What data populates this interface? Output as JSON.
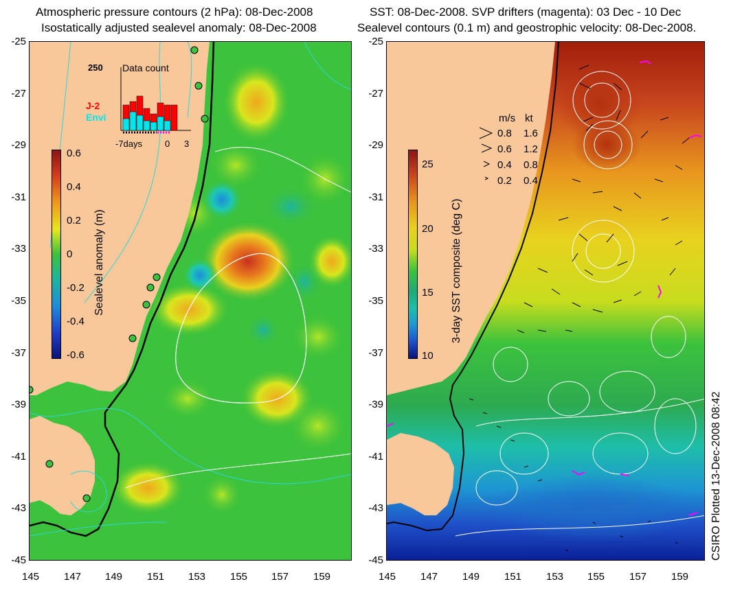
{
  "left_panel": {
    "title_line1": "Atmospheric pressure contours (2 hPa): 08-Dec-2008",
    "title_line2": "Isostatically adjusted sealevel anomaly: 08-Dec-2008",
    "colorbar_label": "Sealevel anomaly (m)",
    "colorbar_ticks": [
      "0.6",
      "0.4",
      "0.2",
      "0",
      "-0.2",
      "-0.4",
      "-0.6"
    ],
    "inset": {
      "title": "Data count",
      "ymax_label": "250",
      "series_a": "J-2",
      "series_b": "Envi",
      "x_labels": [
        "-7days",
        "0",
        "3"
      ],
      "colors": {
        "series_a": "#ff0000",
        "series_b": "#00e5ee",
        "days_marker": "#ff00ff"
      }
    }
  },
  "right_panel": {
    "title_line1": "SST: 08-Dec-2008. SVP drifters (magenta): 03 Dec - 10 Dec",
    "title_line2": "Sealevel contours (0.1 m) and geostrophic velocity: 08-Dec-2008.",
    "colorbar_label": "3-day SST composite (deg C)",
    "colorbar_ticks": [
      "25",
      "20",
      "15",
      "10"
    ],
    "velocity_legend": {
      "header_ms": "m/s",
      "header_kt": "kt",
      "rows": [
        {
          "ms": "0.8",
          "kt": "1.6"
        },
        {
          "ms": "0.6",
          "kt": "1.2"
        },
        {
          "ms": "0.4",
          "kt": "0.8"
        },
        {
          "ms": "0.2",
          "kt": "0.4"
        }
      ]
    }
  },
  "axes": {
    "y_labels": [
      "-25",
      "-27",
      "-29",
      "-31",
      "-33",
      "-35",
      "-37",
      "-39",
      "-41",
      "-43",
      "-45"
    ],
    "x_labels": [
      "145",
      "147",
      "149",
      "151",
      "153",
      "155",
      "157",
      "159"
    ]
  },
  "credit": "CSIRO Plotted 13-Dec-2008 08:42",
  "colors": {
    "land": "#f9c89a",
    "ocean_green": "#3cc23c",
    "coastline": "#000000",
    "pressure_contour": "#2bd6d6",
    "sealevel_contour": "#ffffff",
    "drifter": "#ff00ff"
  }
}
